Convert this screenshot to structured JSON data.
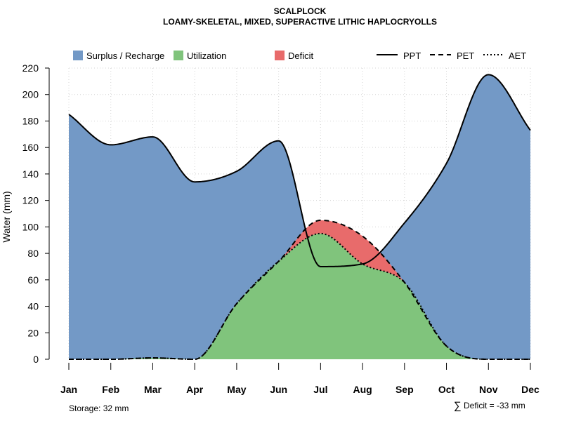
{
  "chart_data": {
    "type": "area",
    "title": "SCALPLOCK",
    "subtitle": "LOAMY-SKELETAL, MIXED, SUPERACTIVE LITHIC HAPLOCRYOLLS",
    "xlabel": "",
    "ylabel": "Water (mm)",
    "categories": [
      "Jan",
      "Feb",
      "Mar",
      "Apr",
      "May",
      "Jun",
      "Jul",
      "Aug",
      "Sep",
      "Oct",
      "Nov",
      "Dec"
    ],
    "ylim": [
      0,
      220
    ],
    "yticks": [
      0,
      20,
      40,
      60,
      80,
      100,
      120,
      140,
      160,
      180,
      200,
      220
    ],
    "grid": true,
    "legend_position": "top",
    "series": [
      {
        "name": "PPT",
        "line": "solid",
        "values": [
          185,
          162,
          168,
          134,
          142,
          165,
          70,
          72,
          103,
          148,
          215,
          173
        ]
      },
      {
        "name": "PET",
        "line": "dashed",
        "values": [
          0,
          0,
          1,
          0,
          42,
          74,
          105,
          93,
          58,
          10,
          0,
          0
        ]
      },
      {
        "name": "AET",
        "line": "dotted",
        "values": [
          0,
          0,
          1,
          0,
          42,
          74,
          95,
          72,
          58,
          10,
          0,
          0
        ]
      }
    ],
    "areas": [
      {
        "name": "Surplus / Recharge",
        "color": "#7399c6"
      },
      {
        "name": "Utilization",
        "color": "#80c47c"
      },
      {
        "name": "Deficit",
        "color": "#e86b6b"
      }
    ],
    "legend": {
      "surplus": "Surplus / Recharge",
      "utilization": "Utilization",
      "deficit": "Deficit",
      "ppt": "PPT",
      "pet": "PET",
      "aet": "AET"
    },
    "annotations": {
      "storage": "Storage: 32 mm",
      "deficit_symbol": "∑",
      "deficit": "Deficit = -33 mm"
    }
  }
}
